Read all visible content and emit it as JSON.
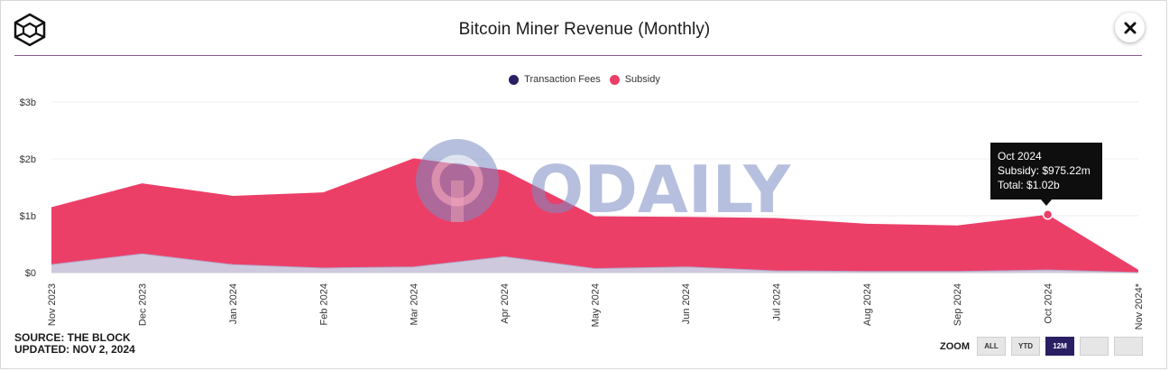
{
  "title": "Bitcoin Miner Revenue (Monthly)",
  "close_icon": "close-icon",
  "logo_icon": "the-block-logo-icon",
  "legend": [
    {
      "label": "Transaction Fees",
      "color": "#2b1f63"
    },
    {
      "label": "Subsidy",
      "color": "#ec3f68"
    }
  ],
  "source_line": "SOURCE: THE BLOCK",
  "updated_line": "UPDATED: NOV 2, 2024",
  "zoom": {
    "label": "ZOOM",
    "buttons": [
      {
        "label": "ALL",
        "active": false
      },
      {
        "label": "YTD",
        "active": false
      },
      {
        "label": "12M",
        "active": true
      },
      {
        "label": "",
        "active": false
      },
      {
        "label": "",
        "active": false
      }
    ]
  },
  "watermark": "ODAILY",
  "tooltip": {
    "month": "Oct 2024",
    "subsidy": "Subsidy: $975.22m",
    "total": "Total: $1.02b"
  },
  "chart_data": {
    "type": "area",
    "stacked": true,
    "categories": [
      "Nov 2023",
      "Dec 2023",
      "Jan 2024",
      "Feb 2024",
      "Mar 2024",
      "Apr 2024",
      "May 2024",
      "Jun 2024",
      "Jul 2024",
      "Aug 2024",
      "Sep 2024",
      "Oct 2024",
      "Nov 2024*"
    ],
    "series": [
      {
        "name": "Transaction Fees",
        "color": "#2b1f63",
        "values": [
          0.14,
          0.33,
          0.14,
          0.08,
          0.1,
          0.28,
          0.07,
          0.1,
          0.03,
          0.02,
          0.02,
          0.045,
          0.0
        ]
      },
      {
        "name": "Subsidy",
        "color": "#ec3f68",
        "values": [
          1.01,
          1.24,
          1.21,
          1.33,
          1.91,
          1.52,
          0.92,
          0.88,
          0.93,
          0.84,
          0.81,
          0.975,
          0.05
        ]
      }
    ],
    "yticks": [
      "$0",
      "$1b",
      "$2b",
      "$3b"
    ],
    "ytick_values": [
      0,
      1,
      2,
      3
    ],
    "ylim": [
      0,
      3
    ],
    "grid": true,
    "legend_position": "top-center",
    "highlight_index": 11
  }
}
